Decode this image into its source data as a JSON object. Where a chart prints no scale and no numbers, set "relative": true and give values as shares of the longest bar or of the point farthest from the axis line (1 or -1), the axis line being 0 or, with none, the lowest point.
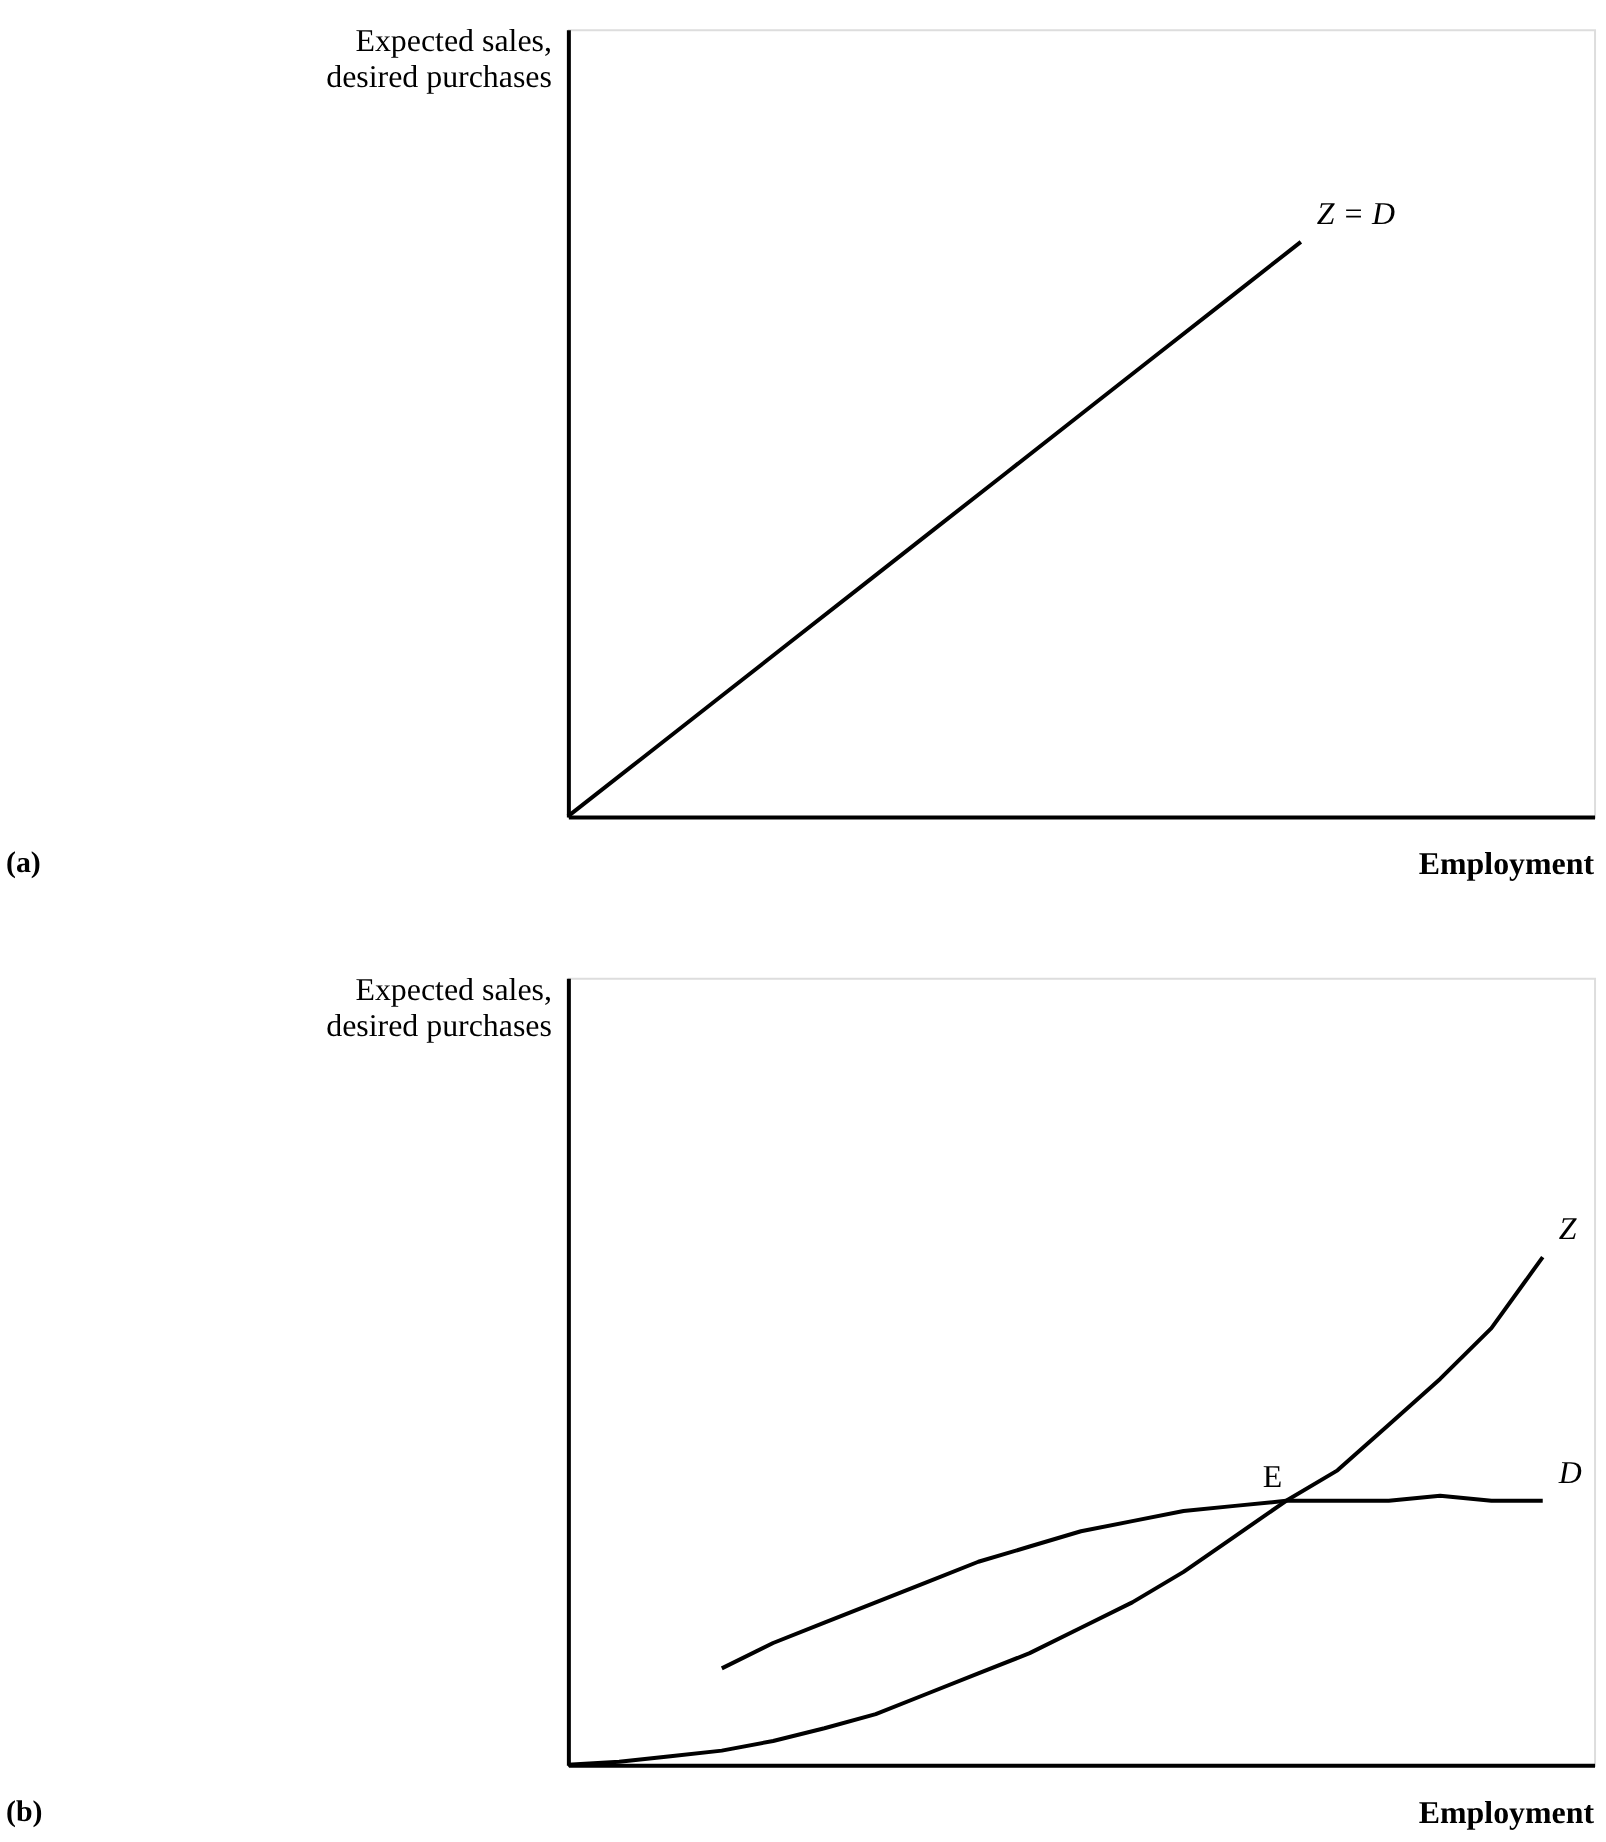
{
  "chart_data": [
    {
      "type": "line",
      "relative": true,
      "xlabel": "Employment",
      "ylabel": "Expected sales,\ndesired purchases",
      "annotations": [
        "(a)"
      ],
      "categories": [
        null,
        null,
        null,
        null,
        null,
        null,
        null,
        null,
        null,
        null,
        null,
        null,
        null,
        null,
        null
      ],
      "series": [
        {
          "name": "Z = D",
          "color": "#000000",
          "values": [
            0,
            0.1,
            0.2,
            0.3,
            0.4,
            0.5,
            0.6,
            0.7,
            0.8,
            0.9,
            1,
            null,
            null,
            null,
            null
          ]
        }
      ]
    },
    {
      "type": "line",
      "relative": true,
      "xlabel": "Employment",
      "ylabel": "Expected sales,\ndesired purchases",
      "annotations": [
        "(b)",
        {
          "text": "E",
          "y": 0.52
        }
      ],
      "categories": [
        null,
        null,
        null,
        null,
        null,
        null,
        null,
        null,
        null,
        null,
        null,
        null,
        null,
        null,
        null,
        null,
        null,
        null,
        null,
        null,
        null
      ],
      "series": [
        {
          "name": "Z",
          "color": "#000000",
          "values": [
            0,
            0.006,
            0.017,
            0.028,
            0.047,
            0.072,
            0.1,
            0.14,
            0.18,
            0.22,
            0.27,
            0.32,
            0.38,
            0.45,
            0.52,
            0.58,
            0.67,
            0.76,
            0.86,
            1,
            null
          ]
        },
        {
          "name": "D",
          "color": "#000000",
          "values": [
            null,
            null,
            null,
            0.19,
            0.24,
            0.28,
            0.32,
            0.36,
            0.4,
            0.43,
            0.46,
            0.48,
            0.5,
            0.51,
            0.52,
            0.52,
            0.52,
            0.53,
            0.52,
            0.52,
            null
          ]
        }
      ]
    }
  ]
}
